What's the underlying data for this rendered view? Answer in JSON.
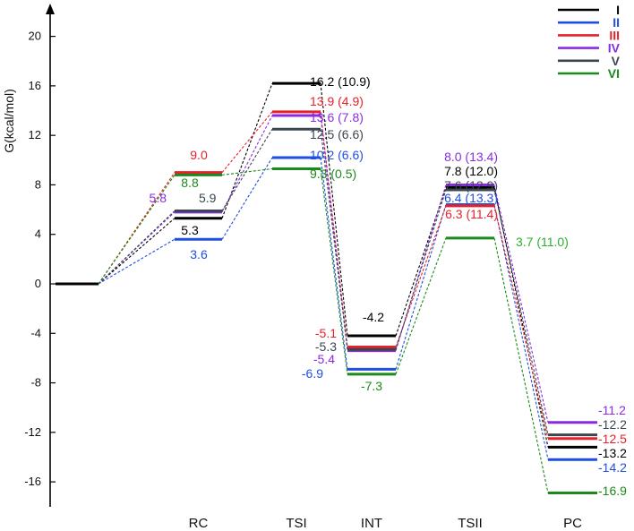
{
  "chart_data": {
    "type": "energy-profile",
    "ylabel": "G(kcal/mol)",
    "ylim": [
      -19.2,
      21
    ],
    "yticks": [
      20,
      16,
      12,
      8,
      4,
      0,
      -4,
      -8,
      -12,
      -16
    ],
    "stages": [
      "RC",
      "TSI",
      "INT",
      "TSII",
      "PC"
    ],
    "reference": {
      "label": "",
      "value": 0,
      "color": "#000000"
    },
    "series": [
      {
        "name": "I",
        "color": "#000000",
        "values": [
          5.3,
          16.2,
          -4.2,
          7.8,
          -13.2
        ],
        "labels": [
          "5.3",
          "16.2 (10.9)",
          "-4.2",
          "7.8 (12.0)",
          "-13.2"
        ]
      },
      {
        "name": "II",
        "color": "#1f4fe0",
        "values": [
          3.6,
          10.2,
          -6.9,
          6.4,
          -14.2
        ],
        "labels": [
          "3.6",
          "10.2 (6.6)",
          "-6.9",
          "6.4 (13.3)",
          "-14.2"
        ]
      },
      {
        "name": "III",
        "color": "#e8202a",
        "values": [
          9.0,
          13.9,
          -5.1,
          6.3,
          -12.5
        ],
        "labels": [
          "9.0",
          "13.9 (4.9)",
          "-5.1",
          "6.3 (11.4)",
          "-12.5"
        ]
      },
      {
        "name": "IV",
        "color": "#8a2be2",
        "values": [
          5.8,
          13.6,
          -5.4,
          8.0,
          -11.2
        ],
        "labels": [
          "5.8",
          "13.6 (7.8)",
          "-5.4",
          "8.0 (13.4)",
          "-11.2"
        ]
      },
      {
        "name": "V",
        "color": "#3b4650",
        "values": [
          5.9,
          12.5,
          -5.3,
          7.6,
          -12.2
        ],
        "labels": [
          "5.9",
          "12.5 (6.6)",
          "-5.3",
          "7.6 (12.9)",
          "-12.2"
        ]
      },
      {
        "name": "VI",
        "color": "#1a8a1a",
        "values": [
          8.8,
          9.3,
          -7.3,
          3.7,
          -16.9
        ],
        "labels": [
          "8.8",
          "9.3 (0.5)",
          "-7.3",
          "3.7 (11.0)",
          "-16.9"
        ],
        "label_colors": [
          "#1a8a1a",
          "#1a8a1a",
          "#1a8a1a",
          "#2ab02a",
          "#1a8a1a"
        ]
      }
    ],
    "legend": {
      "position": "top-right",
      "entries": [
        "I",
        "II",
        "III",
        "IV",
        "V",
        "VI"
      ]
    },
    "grid": false
  }
}
